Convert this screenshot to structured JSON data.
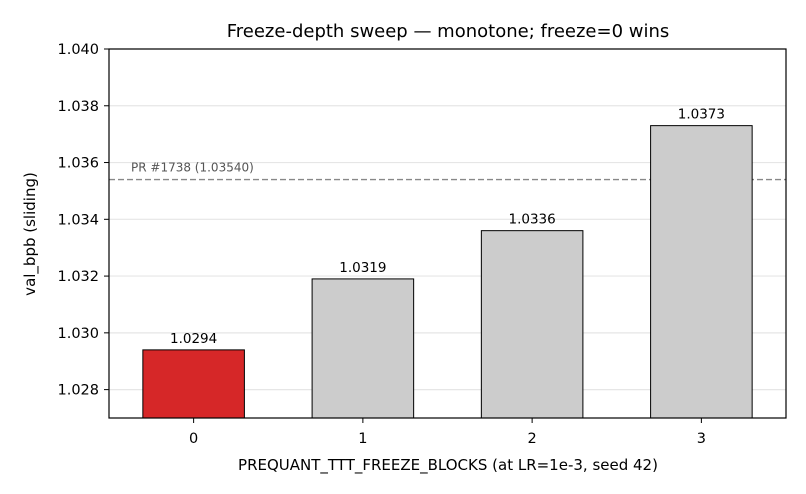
{
  "chart_data": {
    "type": "bar",
    "title": "Freeze-depth sweep — monotone; freeze=0 wins",
    "xlabel": "PREQUANT_TTT_FREEZE_BLOCKS (at LR=1e-3, seed 42)",
    "ylabel": "val_bpb (sliding)",
    "categories": [
      "0",
      "1",
      "2",
      "3"
    ],
    "values": [
      1.0294,
      1.0319,
      1.0336,
      1.0373
    ],
    "value_labels": [
      "1.0294",
      "1.0319",
      "1.0336",
      "1.0373"
    ],
    "bar_colors": [
      "#d62728",
      "#cccccc",
      "#cccccc",
      "#cccccc"
    ],
    "ylim": [
      1.027,
      1.04
    ],
    "yticks": [
      "1.028",
      "1.030",
      "1.032",
      "1.034",
      "1.036",
      "1.038",
      "1.040"
    ],
    "grid": "y",
    "reference_line": {
      "label": "PR #1738 (1.03540)",
      "value": 1.0354,
      "style": "dashed",
      "color": "#888888"
    },
    "legend": null
  }
}
